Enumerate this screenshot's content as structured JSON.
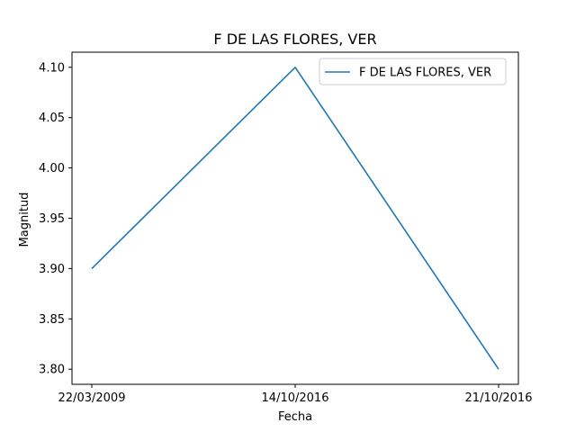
{
  "chart_data": {
    "type": "line",
    "title": "F DE LAS FLORES, VER",
    "xlabel": "Fecha",
    "ylabel": "Magnitud",
    "categories": [
      "22/03/2009",
      "14/10/2016",
      "21/10/2016"
    ],
    "series": [
      {
        "name": "F DE LAS FLORES, VER",
        "values": [
          3.9,
          4.1,
          3.8
        ],
        "color": "#1f77b4"
      }
    ],
    "ylim": [
      3.785,
      4.115
    ],
    "yticks": [
      "3.80",
      "3.85",
      "3.90",
      "3.95",
      "4.00",
      "4.05",
      "4.10"
    ],
    "grid": false,
    "legend": "top-right"
  }
}
